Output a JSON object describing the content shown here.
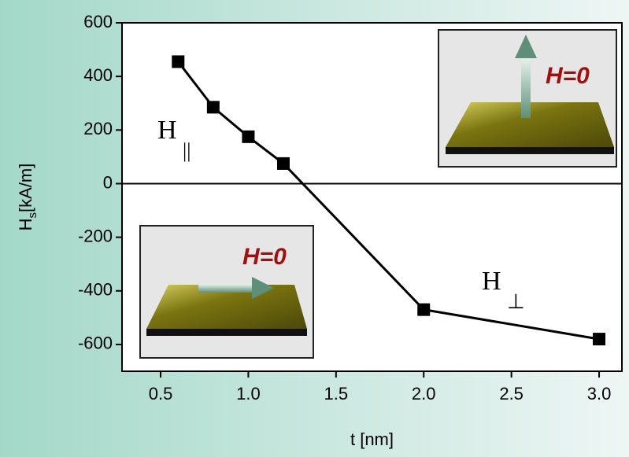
{
  "chart_data": {
    "type": "line",
    "x_label": "t [nm]",
    "y_label": {
      "main": "H",
      "sub": "s",
      "rest": "[kA/m]"
    },
    "x": [
      0.6,
      0.8,
      1.0,
      1.2,
      2.0,
      3.0
    ],
    "series": [
      {
        "color": "#000000",
        "values": [
          455,
          285,
          175,
          75,
          -470,
          -580
        ]
      }
    ],
    "xlim": [
      0.28,
      3.13
    ],
    "ylim": [
      -700,
      600
    ],
    "xticks": [
      0.5,
      1.0,
      1.5,
      2.0,
      2.5,
      3.0
    ],
    "yticks": [
      -600,
      -400,
      -200,
      0,
      200,
      400,
      600
    ],
    "zero_line": true,
    "annotations": [
      {
        "main": "H",
        "sub": "||"
      },
      {
        "main": "H",
        "sub": "⊥"
      }
    ],
    "insets": [
      {
        "label": "H=0"
      },
      {
        "label": "H=0"
      }
    ]
  }
}
